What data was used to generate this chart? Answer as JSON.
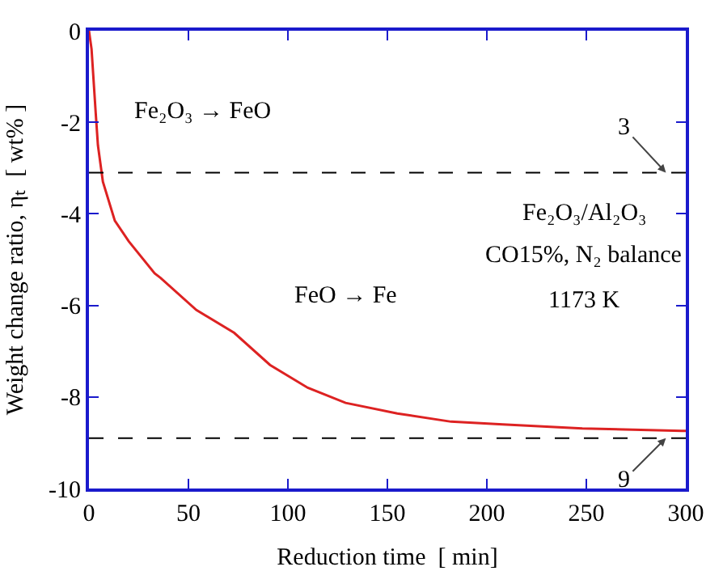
{
  "chart_data": {
    "type": "line",
    "xlabel": "Reduction time  [ min]",
    "ylabel": "Weight change ratio, ηₜ  [ wt% ]",
    "x": [
      0,
      1.3,
      3.4,
      4.5,
      7,
      13,
      20,
      33,
      36,
      54,
      73,
      91,
      110,
      129,
      155,
      182,
      208,
      248,
      298,
      300
    ],
    "series": [
      {
        "color": "#dd2222",
        "values": [
          0,
          -0.4,
          -1.8,
          -2.5,
          -3.3,
          -4.15,
          -4.6,
          -5.3,
          -5.4,
          -6.1,
          -6.6,
          -7.3,
          -7.8,
          -8.13,
          -8.36,
          -8.54,
          -8.6,
          -8.69,
          -8.74,
          -8.74
        ]
      }
    ],
    "xlim": [
      0,
      300
    ],
    "xticks": [
      0,
      50,
      100,
      150,
      200,
      250,
      300
    ],
    "ylim": [
      -10,
      0
    ],
    "yticks": [
      -10,
      -8,
      -6,
      -4,
      -2,
      0
    ],
    "grid": false,
    "marker": "none",
    "line_style": "solid",
    "ref_lines": [
      {
        "axis": "y",
        "value": -3.1,
        "color": "#000000",
        "line_style": "dashed"
      },
      {
        "axis": "y",
        "value": -8.9,
        "color": "#000000",
        "line_style": "dashed"
      }
    ],
    "annotations": [
      "Fe₂O₃ → FeO",
      "FeO → Fe",
      "Fe₂O₃/Al₂O₃",
      "CO15%, N₂ balance",
      "1173 K",
      {
        "text": "3",
        "x": 290,
        "y": -3.1
      },
      {
        "text": "9",
        "x": 290,
        "y": -8.9
      }
    ]
  }
}
